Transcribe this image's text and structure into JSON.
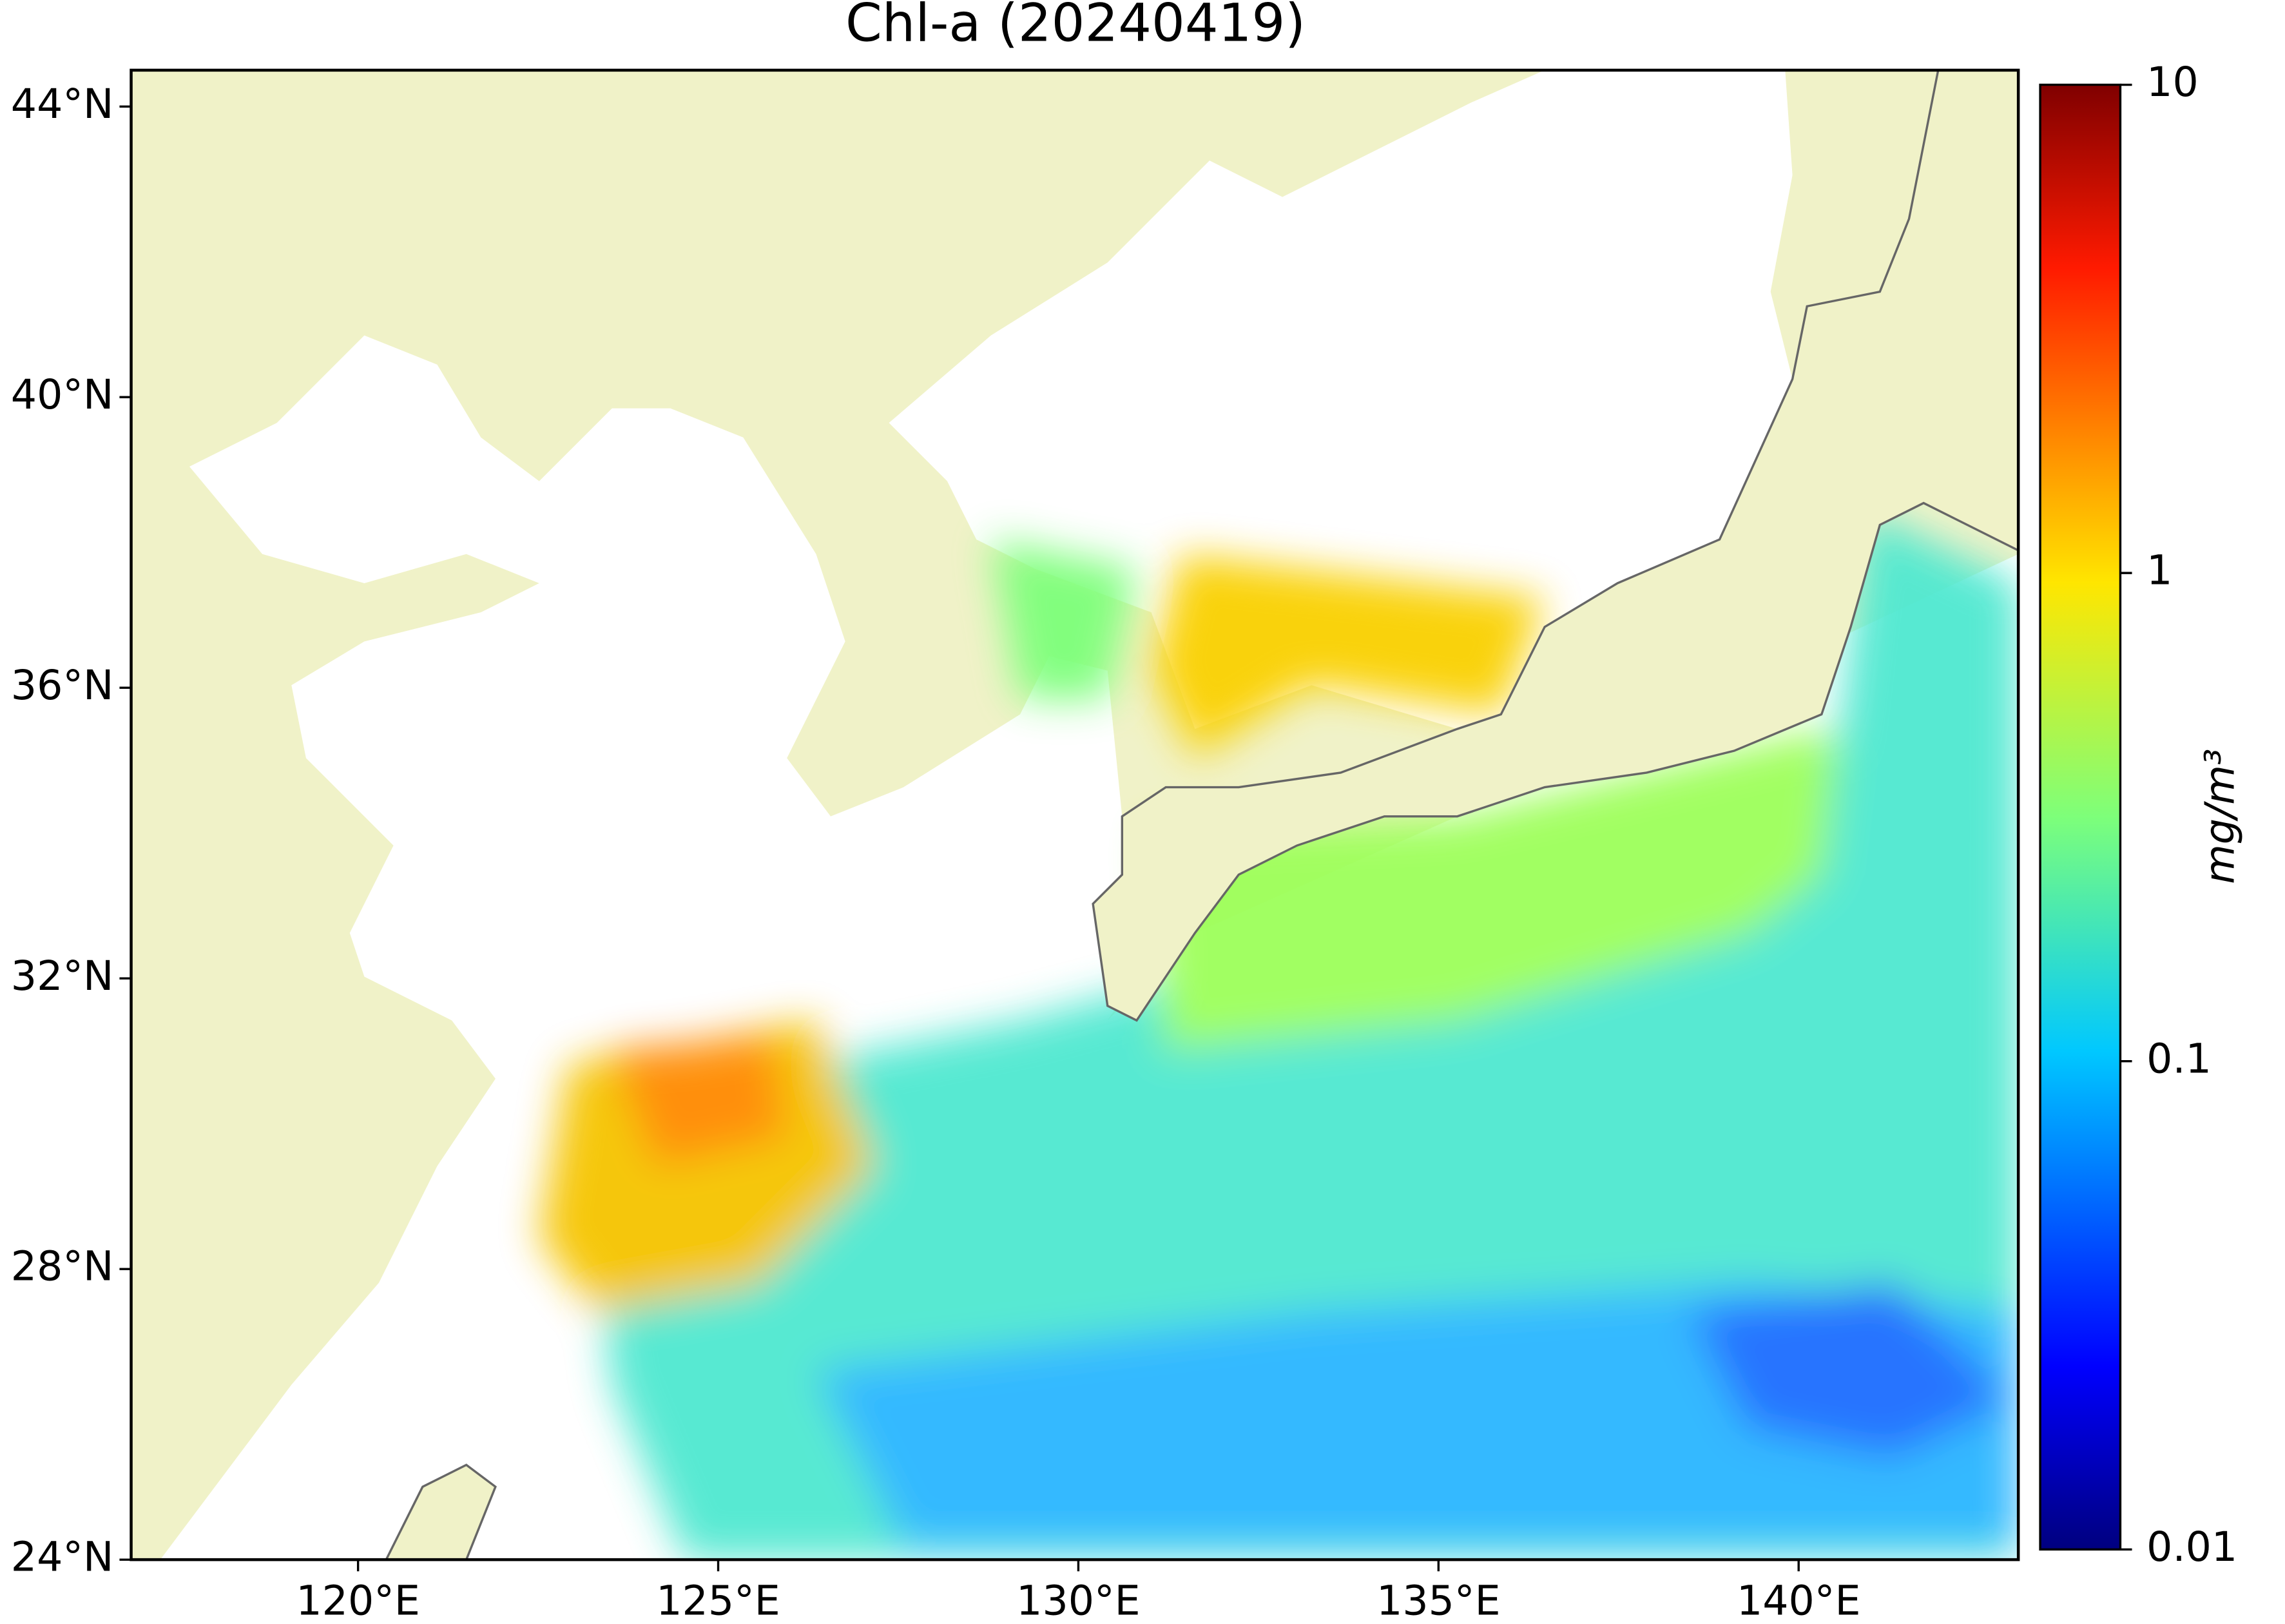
{
  "chart_data": {
    "type": "map",
    "title": "Chl-a (20240419)",
    "xlim": [
      116.85,
      143.05
    ],
    "xticks": [
      {
        "value": 120,
        "label": "120°E"
      },
      {
        "value": 125,
        "label": "125°E"
      },
      {
        "value": 130,
        "label": "130°E"
      },
      {
        "value": 135,
        "label": "135°E"
      },
      {
        "value": 140,
        "label": "140°E"
      }
    ],
    "ylim": [
      24,
      44.5
    ],
    "yticks": [
      {
        "value": 24,
        "label": "24°N"
      },
      {
        "value": 28,
        "label": "28°N"
      },
      {
        "value": 32,
        "label": "32°N"
      },
      {
        "value": 36,
        "label": "36°N"
      },
      {
        "value": 40,
        "label": "40°N"
      },
      {
        "value": 44,
        "label": "44°N"
      }
    ],
    "colorbar": {
      "label": "mg/m³",
      "scale": "log",
      "colormap": "jet",
      "lim": [
        0.01,
        10
      ],
      "ticks": [
        0.01,
        0.1,
        1,
        10
      ]
    }
  }
}
